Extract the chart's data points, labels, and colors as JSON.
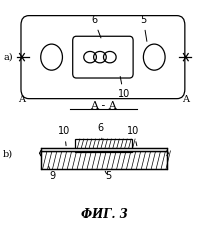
{
  "bg_color": "#ffffff",
  "title": "ФИГ. 3",
  "label_a": "a)",
  "label_b": "b)",
  "section_label": "A - A"
}
